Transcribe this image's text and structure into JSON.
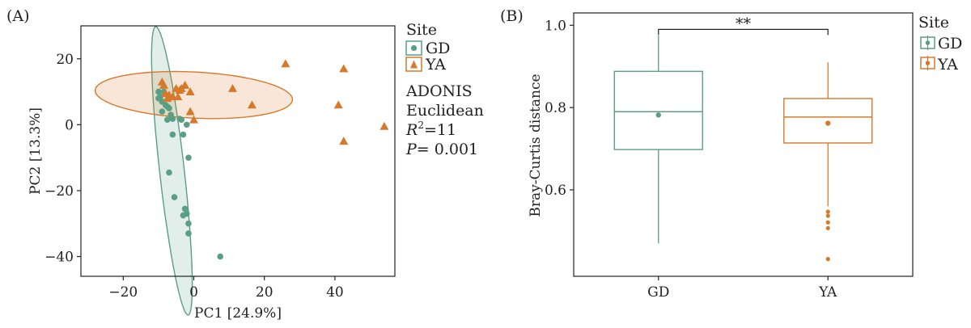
{
  "chart_data": [
    {
      "panel_label": "(A)",
      "type": "scatter",
      "xlabel": "PC1 [24.9%]",
      "ylabel": "PC2 [13.3%]",
      "xlim": [
        -32,
        57
      ],
      "ylim": [
        -46,
        30
      ],
      "xticks": [
        -20,
        0,
        20,
        40
      ],
      "xtick_labels": [
        "−20",
        "0",
        "20",
        "40"
      ],
      "yticks": [
        -40,
        -20,
        0,
        20
      ],
      "ytick_labels": [
        "−40",
        "−20",
        "0",
        "20"
      ],
      "grid": false,
      "legend": {
        "title": "Site",
        "placement": "right",
        "entries": [
          "GD",
          "YA"
        ]
      },
      "annotation": {
        "line1": "ADONIS",
        "line2": "Euclidean",
        "r2_symbol": "R",
        "r2_sup": "2",
        "r2_value": "=11",
        "p_symbol": "P",
        "p_value": "= 0.001"
      },
      "series": [
        {
          "name": "GD",
          "marker": "circle",
          "color": "#5b9e86",
          "points": [
            [
              -10,
              10
            ],
            [
              -9.5,
              8.5
            ],
            [
              -10,
              8
            ],
            [
              -9,
              7
            ],
            [
              -8.5,
              10
            ],
            [
              -8,
              6
            ],
            [
              -7.5,
              5.5
            ],
            [
              -7,
              5
            ],
            [
              -9,
              4
            ],
            [
              -6.5,
              3
            ],
            [
              -6,
              1.8
            ],
            [
              -7.5,
              1.5
            ],
            [
              -4,
              1.8
            ],
            [
              -3.5,
              1.5
            ],
            [
              -2,
              0
            ],
            [
              -6,
              -3
            ],
            [
              -3,
              -3
            ],
            [
              -1.5,
              -10
            ],
            [
              -7,
              -14.5
            ],
            [
              -5.5,
              -22
            ],
            [
              -2.5,
              -25.5
            ],
            [
              -2,
              -27
            ],
            [
              -3,
              -27.5
            ],
            [
              -1.5,
              -30
            ],
            [
              -1.5,
              -33
            ],
            [
              7.5,
              -40
            ]
          ],
          "ellipse": {
            "center": [
              -6.2,
              -14
            ],
            "semi_major": 44,
            "semi_minor": 3.5,
            "angle_deg": -84
          }
        },
        {
          "name": "YA",
          "marker": "triangle",
          "color": "#d7792a",
          "points": [
            [
              -9,
              13
            ],
            [
              -8.5,
              12
            ],
            [
              -8,
              9.5
            ],
            [
              -7,
              9
            ],
            [
              -6,
              8.5
            ],
            [
              -7.5,
              8
            ],
            [
              -5,
              11
            ],
            [
              -3.5,
              11
            ],
            [
              -2.5,
              12
            ],
            [
              -4,
              10.5
            ],
            [
              -1,
              10
            ],
            [
              -4.5,
              8.5
            ],
            [
              -1,
              4
            ],
            [
              0,
              1.5
            ],
            [
              11,
              11
            ],
            [
              16.5,
              6
            ],
            [
              26,
              18.5
            ],
            [
              42.5,
              17
            ],
            [
              41,
              6
            ],
            [
              42.5,
              -5
            ],
            [
              54,
              -0.5
            ]
          ],
          "ellipse": {
            "center": [
              0,
              9
            ],
            "semi_major": 28,
            "semi_minor": 7,
            "angle_deg": -3
          }
        }
      ]
    },
    {
      "panel_label": "(B)",
      "type": "box",
      "categories": [
        "GD",
        "YA"
      ],
      "xlabel": "",
      "ylabel": "Bray-Curtis distance",
      "ylim": [
        0.39,
        1.03
      ],
      "yticks": [
        0.6,
        0.8,
        1.0
      ],
      "ytick_labels": [
        "0.6",
        "0.8",
        "1.0"
      ],
      "grid": false,
      "significance": "**",
      "legend": {
        "title": "Site",
        "placement": "right",
        "entries": [
          "GD",
          "YA"
        ]
      },
      "boxes": [
        {
          "name": "GD",
          "color": "#5b9e86",
          "min": 0.47,
          "q1": 0.698,
          "median": 0.79,
          "q3": 0.888,
          "max": 0.975,
          "mean": 0.782,
          "outliers": []
        },
        {
          "name": "YA",
          "color": "#d7792a",
          "min": 0.56,
          "q1": 0.714,
          "median": 0.777,
          "q3": 0.822,
          "max": 0.91,
          "mean": 0.762,
          "outliers": [
            0.547,
            0.537,
            0.521,
            0.507,
            0.432
          ]
        }
      ]
    }
  ]
}
